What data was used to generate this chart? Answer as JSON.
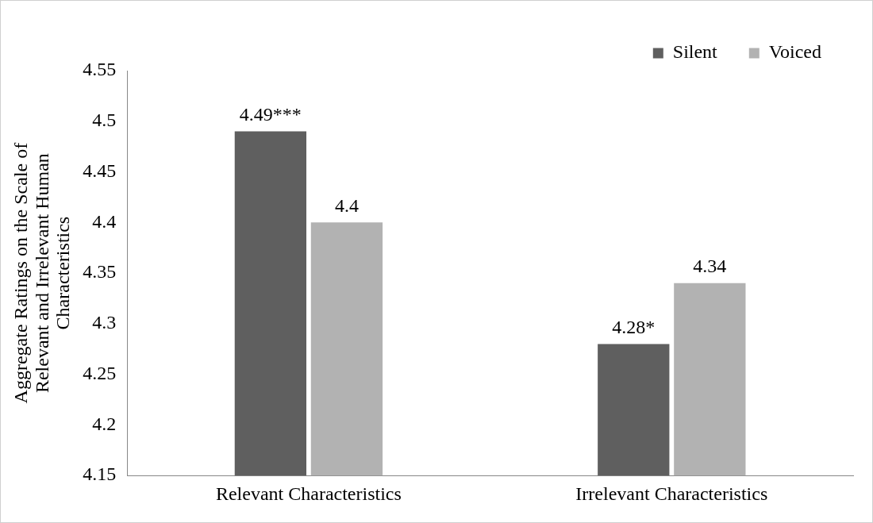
{
  "chart_data": {
    "type": "bar",
    "ylabel": "Aggregate Ratings on the Scale of Relevant and Irrelevant Human Characteristics",
    "categories": [
      "Relevant Characteristics",
      "Irrelevant Characteristics"
    ],
    "series": [
      {
        "name": "Silent",
        "color": "#5f5f5f",
        "values": [
          4.49,
          4.28
        ],
        "value_labels": [
          "4.49***",
          "4.28*"
        ]
      },
      {
        "name": "Voiced",
        "color": "#b2b2b2",
        "values": [
          4.4,
          4.34
        ],
        "value_labels": [
          "4.4",
          "4.34"
        ]
      }
    ],
    "ylim": [
      4.15,
      4.55
    ],
    "yticks": [
      4.15,
      4.2,
      4.25,
      4.3,
      4.35,
      4.4,
      4.45,
      4.5,
      4.55
    ],
    "grid": false,
    "legend": "top right"
  }
}
